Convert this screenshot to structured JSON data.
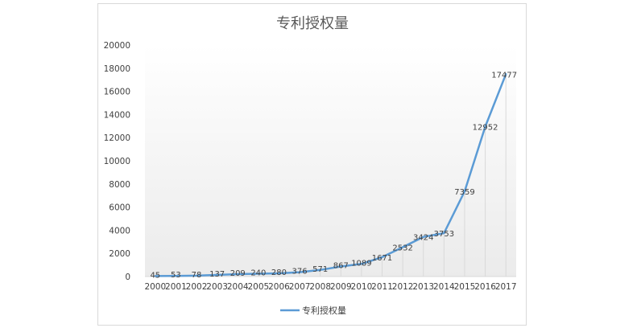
{
  "chart_data": {
    "type": "line",
    "title": "专利授权量",
    "xlabel": "",
    "ylabel": "",
    "x": [
      "2000",
      "2001",
      "2002",
      "2003",
      "2004",
      "2005",
      "2006",
      "2007",
      "2008",
      "2009",
      "2010",
      "2011",
      "2012",
      "2013",
      "2014",
      "2015",
      "2016",
      "2017"
    ],
    "series": [
      {
        "name": "专利授权量",
        "values": [
          45,
          53,
          78,
          137,
          209,
          240,
          280,
          376,
          571,
          867,
          1089,
          1671,
          2532,
          3424,
          3753,
          7359,
          12952,
          17477
        ]
      }
    ],
    "ylim": [
      0,
      20000
    ],
    "yticks": [
      0,
      2000,
      4000,
      6000,
      8000,
      10000,
      12000,
      14000,
      16000,
      18000,
      20000
    ],
    "grid": false,
    "drop_lines": true,
    "legend": "bottom",
    "line_color": "#5b9bd5"
  }
}
